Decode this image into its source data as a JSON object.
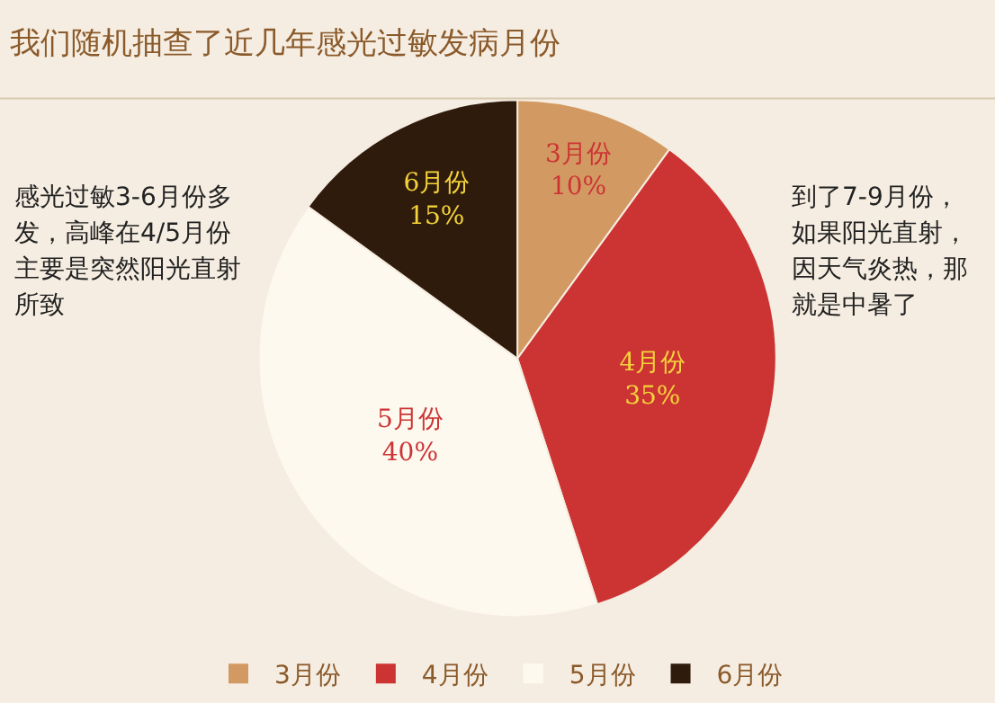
{
  "chart_data": {
    "type": "pie",
    "title": "我们随机抽查了近几年感光过敏发病月份",
    "categories": [
      "3月份",
      "4月份",
      "5月份",
      "6月份"
    ],
    "values": [
      10,
      35,
      40,
      15
    ],
    "value_labels": [
      "10%",
      "35%",
      "40%",
      "15%"
    ],
    "colors": [
      "#d29a62",
      "#cc3434",
      "#fdf9ef",
      "#2f1b0c"
    ],
    "legend": "bottom",
    "annotations": [
      "感光过敏3-6月份多发，高峰在4/5月份主要是突然阳光直射所致",
      "到了7-9月份，如果阳光直射，因天气炎热，那就是中暑了"
    ]
  }
}
